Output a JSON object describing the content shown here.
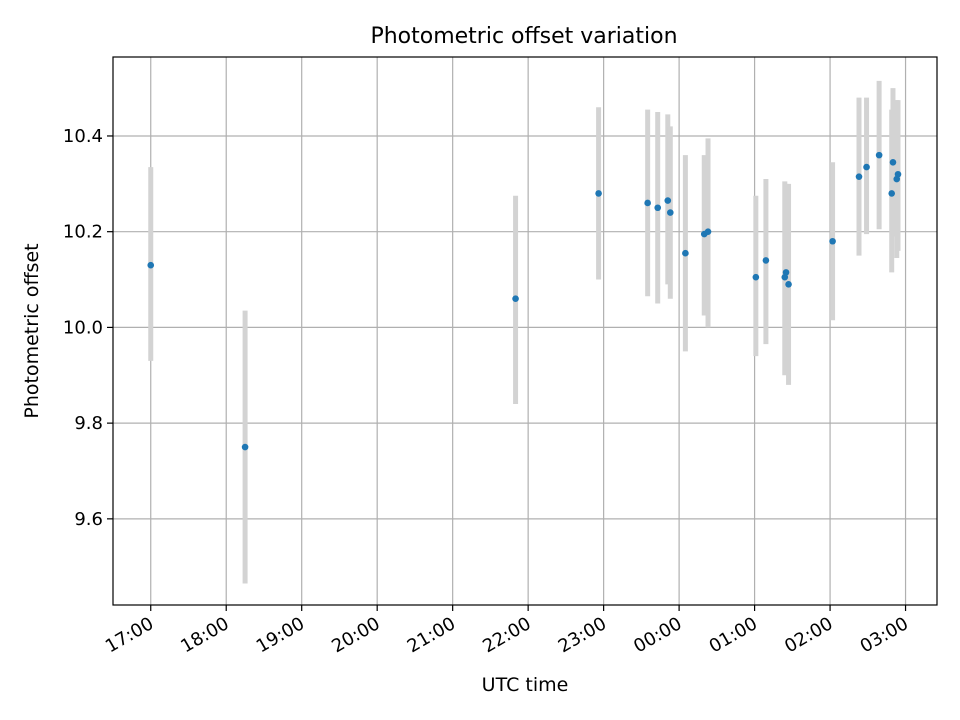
{
  "chart_data": {
    "type": "scatter",
    "title": "Photometric offset variation",
    "xlabel": "UTC time",
    "ylabel": "Photometric offset",
    "x_axis": "time",
    "x_range": [
      "16:30",
      "03:25"
    ],
    "x_ticks": [
      "17:00",
      "18:00",
      "19:00",
      "20:00",
      "21:00",
      "22:00",
      "23:00",
      "00:00",
      "01:00",
      "02:00",
      "03:00"
    ],
    "y_range": [
      9.42,
      10.565
    ],
    "y_ticks": [
      "9.6",
      "9.8",
      "10.0",
      "10.2",
      "10.4"
    ],
    "grid": true,
    "legend": "none",
    "colors": {
      "points": "#1f77b4",
      "error_bars": "#d3d3d3",
      "grid": "#b0b0b0"
    },
    "series": [
      {
        "points": [
          {
            "time": "17:00",
            "y": 10.13,
            "yerr_low": 9.93,
            "yerr_high": 10.335
          },
          {
            "time": "18:15",
            "y": 9.75,
            "yerr_low": 9.465,
            "yerr_high": 10.035
          },
          {
            "time": "21:50",
            "y": 10.06,
            "yerr_low": 9.84,
            "yerr_high": 10.275
          },
          {
            "time": "22:56",
            "y": 10.28,
            "yerr_low": 10.1,
            "yerr_high": 10.46
          },
          {
            "time": "23:35",
            "y": 10.26,
            "yerr_low": 10.065,
            "yerr_high": 10.455
          },
          {
            "time": "23:43",
            "y": 10.25,
            "yerr_low": 10.05,
            "yerr_high": 10.45
          },
          {
            "time": "23:51",
            "y": 10.265,
            "yerr_low": 10.09,
            "yerr_high": 10.445
          },
          {
            "time": "23:53",
            "y": 10.24,
            "yerr_low": 10.06,
            "yerr_high": 10.42
          },
          {
            "time": "00:05",
            "y": 10.155,
            "yerr_low": 9.95,
            "yerr_high": 10.36
          },
          {
            "time": "00:20",
            "y": 10.195,
            "yerr_low": 10.025,
            "yerr_high": 10.36
          },
          {
            "time": "00:23",
            "y": 10.2,
            "yerr_low": 10.0,
            "yerr_high": 10.395
          },
          {
            "time": "01:01",
            "y": 10.105,
            "yerr_low": 9.94,
            "yerr_high": 10.275
          },
          {
            "time": "01:09",
            "y": 10.14,
            "yerr_low": 9.965,
            "yerr_high": 10.31
          },
          {
            "time": "01:24",
            "y": 10.105,
            "yerr_low": 9.9,
            "yerr_high": 10.305
          },
          {
            "time": "01:25",
            "y": 10.115,
            "yerr_low": 9.93,
            "yerr_high": 10.3
          },
          {
            "time": "01:27",
            "y": 10.09,
            "yerr_low": 9.88,
            "yerr_high": 10.3
          },
          {
            "time": "02:02",
            "y": 10.18,
            "yerr_low": 10.015,
            "yerr_high": 10.345
          },
          {
            "time": "02:23",
            "y": 10.315,
            "yerr_low": 10.15,
            "yerr_high": 10.48
          },
          {
            "time": "02:29",
            "y": 10.335,
            "yerr_low": 10.195,
            "yerr_high": 10.48
          },
          {
            "time": "02:39",
            "y": 10.36,
            "yerr_low": 10.205,
            "yerr_high": 10.515
          },
          {
            "time": "02:49",
            "y": 10.28,
            "yerr_low": 10.115,
            "yerr_high": 10.455
          },
          {
            "time": "02:50",
            "y": 10.345,
            "yerr_low": 10.19,
            "yerr_high": 10.5
          },
          {
            "time": "02:53",
            "y": 10.31,
            "yerr_low": 10.145,
            "yerr_high": 10.475
          },
          {
            "time": "02:54",
            "y": 10.32,
            "yerr_low": 10.16,
            "yerr_high": 10.475
          }
        ]
      }
    ]
  }
}
